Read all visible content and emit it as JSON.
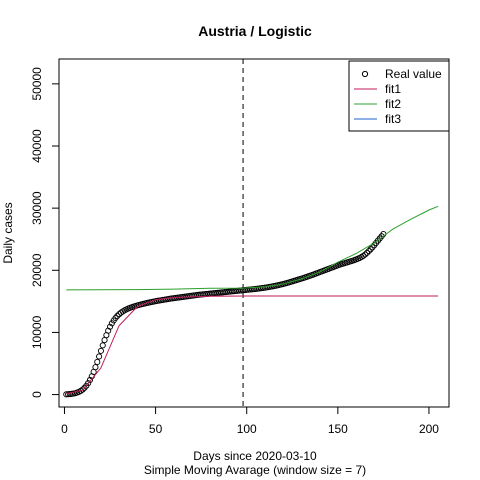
{
  "chart_data": {
    "type": "line",
    "title": "Austria / Logistic",
    "xlabel": "Days since 2020-03-10",
    "subtitle": "Simple Moving Avarage (window size = 7)",
    "ylabel": "Daily cases",
    "xlim": [
      -3,
      211
    ],
    "ylim": [
      -2000,
      54000
    ],
    "x_ticks": [
      0,
      50,
      100,
      150,
      200
    ],
    "y_ticks": [
      0,
      10000,
      20000,
      30000,
      40000,
      50000
    ],
    "vline_x": 98,
    "grid": false,
    "legend_position": "top-right",
    "legend": [
      {
        "label": "Real value",
        "kind": "point"
      },
      {
        "label": "fit1",
        "kind": "line",
        "color": "#c2185b"
      },
      {
        "label": "fit2",
        "kind": "line",
        "color": "#2ca02c"
      },
      {
        "label": "fit3",
        "kind": "line",
        "color": "#1f5fcf"
      }
    ],
    "series": [
      {
        "name": "Real value",
        "kind": "points",
        "x": [
          1,
          2,
          3,
          4,
          5,
          6,
          7,
          8,
          9,
          10,
          11,
          12,
          13,
          14,
          15,
          16,
          17,
          18,
          19,
          20,
          21,
          22,
          23,
          24,
          25,
          26,
          27,
          28,
          29,
          30,
          31,
          32,
          33,
          34,
          35,
          36,
          37,
          38,
          39,
          40,
          41,
          42,
          43,
          44,
          45,
          46,
          47,
          48,
          49,
          50,
          51,
          52,
          53,
          54,
          55,
          56,
          57,
          58,
          59,
          60,
          61,
          62,
          63,
          64,
          65,
          66,
          67,
          68,
          69,
          70,
          71,
          72,
          73,
          74,
          75,
          76,
          77,
          78,
          79,
          80,
          81,
          82,
          83,
          84,
          85,
          86,
          87,
          88,
          89,
          90,
          91,
          92,
          93,
          94,
          95,
          96,
          97,
          98,
          99,
          100,
          101,
          102,
          103,
          104,
          105,
          106,
          107,
          108,
          109,
          110,
          111,
          112,
          113,
          114,
          115,
          116,
          117,
          118,
          119,
          120,
          121,
          122,
          123,
          124,
          125,
          126,
          127,
          128,
          129,
          130,
          131,
          132,
          133,
          134,
          135,
          136,
          137,
          138,
          139,
          140,
          141,
          142,
          143,
          144,
          145,
          146,
          147,
          148,
          149,
          150,
          151,
          152,
          153,
          154,
          155,
          156,
          157,
          158,
          159,
          160,
          161,
          162,
          163,
          164,
          165,
          166,
          167,
          168,
          169,
          170,
          171,
          172,
          173,
          174,
          175
        ],
        "y": [
          40,
          55,
          80,
          115,
          165,
          230,
          320,
          440,
          600,
          810,
          1080,
          1420,
          1840,
          2350,
          2950,
          3640,
          4410,
          5250,
          6130,
          7030,
          7920,
          8770,
          9560,
          10280,
          10910,
          11460,
          11920,
          12320,
          12650,
          12940,
          13180,
          13380,
          13560,
          13710,
          13840,
          13960,
          14070,
          14170,
          14260,
          14350,
          14430,
          14510,
          14580,
          14650,
          14720,
          14780,
          14840,
          14900,
          14960,
          15020,
          15080,
          15130,
          15180,
          15230,
          15280,
          15330,
          15380,
          15430,
          15470,
          15510,
          15550,
          15590,
          15630,
          15670,
          15710,
          15750,
          15790,
          15830,
          15870,
          15910,
          15950,
          15990,
          16030,
          16070,
          16100,
          16130,
          16160,
          16190,
          16220,
          16250,
          16280,
          16310,
          16340,
          16370,
          16400,
          16430,
          16460,
          16490,
          16520,
          16550,
          16580,
          16610,
          16640,
          16670,
          16700,
          16730,
          16760,
          16790,
          16820,
          16850,
          16880,
          16910,
          16940,
          16970,
          17000,
          17040,
          17080,
          17120,
          17160,
          17200,
          17250,
          17300,
          17350,
          17400,
          17460,
          17520,
          17580,
          17650,
          17720,
          17790,
          17870,
          17950,
          18030,
          18120,
          18210,
          18300,
          18390,
          18480,
          18570,
          18660,
          18750,
          18850,
          18950,
          19050,
          19150,
          19250,
          19360,
          19470,
          19580,
          19690,
          19800,
          19910,
          20020,
          20130,
          20240,
          20350,
          20460,
          20570,
          20680,
          20790,
          20890,
          20990,
          21080,
          21170,
          21260,
          21350,
          21440,
          21530,
          21630,
          21740,
          21860,
          21990,
          22140,
          22320,
          22540,
          22800,
          23080,
          23380,
          23700,
          24040,
          24400,
          24760,
          25120,
          25480,
          25840
        ]
      },
      {
        "name": "fit1",
        "kind": "line",
        "color": "#c2185b",
        "x": [
          1,
          10,
          20,
          30,
          40,
          50,
          60,
          80,
          100,
          150,
          205
        ],
        "y": [
          120,
          700,
          4300,
          11100,
          14150,
          15270,
          15620,
          15820,
          15860,
          15870,
          15870
        ]
      },
      {
        "name": "fit2",
        "kind": "line",
        "color": "#2ca02c",
        "x": [
          1,
          20,
          40,
          60,
          80,
          98,
          110,
          120,
          130,
          140,
          150,
          160,
          170,
          175,
          180,
          190,
          200,
          205
        ],
        "y": [
          16850,
          16870,
          16900,
          16980,
          17100,
          17130,
          17350,
          17800,
          18600,
          19700,
          21300,
          22700,
          24400,
          25500,
          26600,
          28200,
          29700,
          30300
        ]
      },
      {
        "name": "fit3",
        "kind": "line",
        "color": "#1f5fcf",
        "x": [],
        "y": []
      }
    ]
  }
}
